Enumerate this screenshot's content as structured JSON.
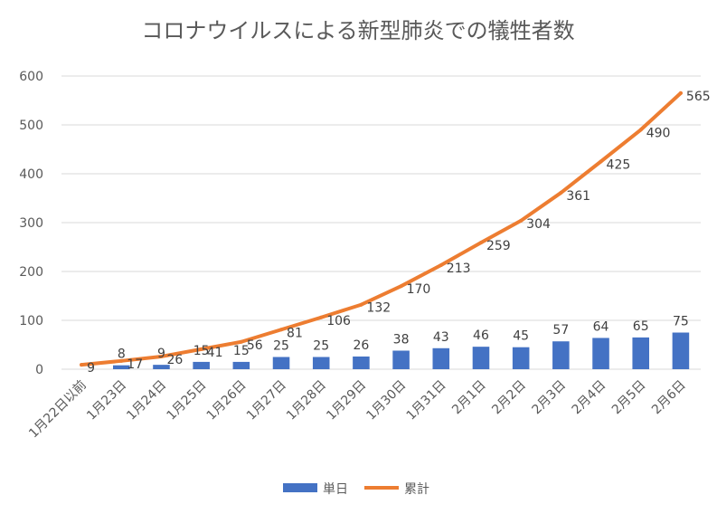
{
  "chart_data": {
    "type": "bar+line",
    "title": "コロナウイルスによる新型肺炎での犠牲者数",
    "categories": [
      "1月22日以前",
      "1月23日",
      "1月24日",
      "1月25日",
      "1月26日",
      "1月27日",
      "1月28日",
      "1月29日",
      "1月30日",
      "1月31日",
      "2月1日",
      "2月2日",
      "2月3日",
      "2月4日",
      "2月5日",
      "2月6日"
    ],
    "ylim": [
      0,
      600
    ],
    "yticks": [
      0,
      100,
      200,
      300,
      400,
      500,
      600
    ],
    "grid": true,
    "legend_position": "bottom",
    "series": [
      {
        "name": "単日",
        "type": "bar",
        "color": "#4472c4",
        "values": [
          null,
          8,
          9,
          15,
          15,
          25,
          25,
          26,
          38,
          43,
          46,
          45,
          57,
          64,
          65,
          75
        ]
      },
      {
        "name": "累計",
        "type": "line",
        "color": "#ed7d31",
        "values": [
          9,
          17,
          26,
          41,
          56,
          81,
          106,
          132,
          170,
          213,
          259,
          304,
          361,
          425,
          490,
          565
        ]
      }
    ]
  }
}
